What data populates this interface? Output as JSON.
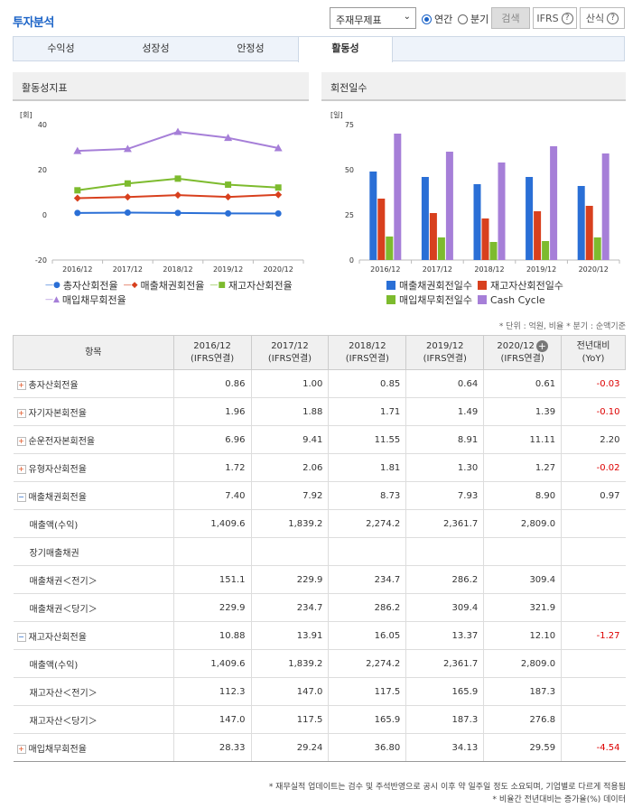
{
  "header": {
    "title": "투자분석",
    "select_value": "주재무제표",
    "radio_annual": "연간",
    "radio_quarter": "분기",
    "search_label": "검색",
    "ifrs_label": "IFRS",
    "calc_label": "산식"
  },
  "tabs": [
    {
      "label": "수익성"
    },
    {
      "label": "성장성"
    },
    {
      "label": "안정성"
    },
    {
      "label": "활동성"
    }
  ],
  "left_panel": {
    "title": "활동성지표"
  },
  "right_panel": {
    "title": "회전일수"
  },
  "chart_data": [
    {
      "type": "line",
      "unit_label": "[회]",
      "categories": [
        "2016/12",
        "2017/12",
        "2018/12",
        "2019/12",
        "2020/12"
      ],
      "ylim": [
        -20,
        40
      ],
      "yticks": [
        "40",
        "20",
        "0",
        "-20"
      ],
      "series": [
        {
          "name": "총자산회전율",
          "values": [
            0.86,
            1.0,
            0.85,
            0.64,
            0.61
          ],
          "color": "#2a6fd6",
          "marker": "circle"
        },
        {
          "name": "매출채권회전율",
          "values": [
            7.4,
            7.92,
            8.73,
            7.93,
            8.9
          ],
          "color": "#d8401e",
          "marker": "diamond"
        },
        {
          "name": "재고자산회전율",
          "values": [
            10.88,
            13.91,
            16.05,
            13.37,
            12.1
          ],
          "color": "#7dbb2e",
          "marker": "square"
        },
        {
          "name": "매입채무회전율",
          "values": [
            28.33,
            29.24,
            36.8,
            34.13,
            29.59
          ],
          "color": "#a67fd8",
          "marker": "triangle"
        }
      ]
    },
    {
      "type": "bar",
      "unit_label": "[일]",
      "categories": [
        "2016/12",
        "2017/12",
        "2018/12",
        "2019/12",
        "2020/12"
      ],
      "ylim": [
        0,
        75
      ],
      "yticks": [
        "75",
        "50",
        "25",
        "0"
      ],
      "series": [
        {
          "name": "매출채권회전일수",
          "values": [
            49,
            46,
            42,
            46,
            41
          ],
          "color": "#2a6fd6"
        },
        {
          "name": "재고자산회전일수",
          "values": [
            34,
            26,
            23,
            27,
            30
          ],
          "color": "#d8401e"
        },
        {
          "name": "매입채무회전일수",
          "values": [
            13,
            12.5,
            10,
            10.5,
            12.5
          ],
          "color": "#7dbb2e"
        },
        {
          "name": "Cash Cycle",
          "values": [
            70,
            60,
            54,
            63,
            59
          ],
          "color": "#a67fd8"
        }
      ]
    }
  ],
  "unit_note": "* 단위 : 억원, 비율   * 분기 : 순액기준",
  "table": {
    "headers": [
      {
        "l1": "항목",
        "l2": ""
      },
      {
        "l1": "2016/12",
        "l2": "(IFRS연결)"
      },
      {
        "l1": "2017/12",
        "l2": "(IFRS연결)"
      },
      {
        "l1": "2018/12",
        "l2": "(IFRS연결)"
      },
      {
        "l1": "2019/12",
        "l2": "(IFRS연결)"
      },
      {
        "l1": "2020/12",
        "l2": "(IFRS연결)"
      },
      {
        "l1": "전년대비",
        "l2": "(YoY)"
      }
    ],
    "rows": [
      {
        "label": "총자산회전율",
        "toggle": "plus",
        "vals": [
          "0.86",
          "1.00",
          "0.85",
          "0.64",
          "0.61"
        ],
        "yoy": "-0.03",
        "neg": true
      },
      {
        "label": "자기자본회전율",
        "toggle": "plus",
        "vals": [
          "1.96",
          "1.88",
          "1.71",
          "1.49",
          "1.39"
        ],
        "yoy": "-0.10",
        "neg": true
      },
      {
        "label": "순운전자본회전율",
        "toggle": "plus",
        "vals": [
          "6.96",
          "9.41",
          "11.55",
          "8.91",
          "11.11"
        ],
        "yoy": "2.20",
        "neg": false
      },
      {
        "label": "유형자산회전율",
        "toggle": "plus",
        "vals": [
          "1.72",
          "2.06",
          "1.81",
          "1.30",
          "1.27"
        ],
        "yoy": "-0.02",
        "neg": true
      },
      {
        "label": "매출채권회전율",
        "toggle": "minus",
        "vals": [
          "7.40",
          "7.92",
          "8.73",
          "7.93",
          "8.90"
        ],
        "yoy": "0.97",
        "neg": false
      },
      {
        "label": "매출액(수익)",
        "toggle": "",
        "vals": [
          "1,409.6",
          "1,839.2",
          "2,274.2",
          "2,361.7",
          "2,809.0"
        ],
        "yoy": "",
        "neg": false
      },
      {
        "label": "장기매출채권",
        "toggle": "",
        "vals": [
          "",
          "",
          "",
          "",
          ""
        ],
        "yoy": "",
        "neg": false
      },
      {
        "label": "매출채권＜전기＞",
        "toggle": "",
        "vals": [
          "151.1",
          "229.9",
          "234.7",
          "286.2",
          "309.4"
        ],
        "yoy": "",
        "neg": false
      },
      {
        "label": "매출채권＜당기＞",
        "toggle": "",
        "vals": [
          "229.9",
          "234.7",
          "286.2",
          "309.4",
          "321.9"
        ],
        "yoy": "",
        "neg": false
      },
      {
        "label": "재고자산회전율",
        "toggle": "minus",
        "vals": [
          "10.88",
          "13.91",
          "16.05",
          "13.37",
          "12.10"
        ],
        "yoy": "-1.27",
        "neg": true
      },
      {
        "label": "매출액(수익)",
        "toggle": "",
        "vals": [
          "1,409.6",
          "1,839.2",
          "2,274.2",
          "2,361.7",
          "2,809.0"
        ],
        "yoy": "",
        "neg": false
      },
      {
        "label": "재고자산＜전기＞",
        "toggle": "",
        "vals": [
          "112.3",
          "147.0",
          "117.5",
          "165.9",
          "187.3"
        ],
        "yoy": "",
        "neg": false
      },
      {
        "label": "재고자산＜당기＞",
        "toggle": "",
        "vals": [
          "147.0",
          "117.5",
          "165.9",
          "187.3",
          "276.8"
        ],
        "yoy": "",
        "neg": false
      },
      {
        "label": "매입채무회전율",
        "toggle": "plus",
        "vals": [
          "28.33",
          "29.24",
          "36.80",
          "34.13",
          "29.59"
        ],
        "yoy": "-4.54",
        "neg": true
      }
    ]
  },
  "footnotes": [
    "* 재무실적 업데이트는 검수 및 주석반영으로 공시 이후 약 일주일 정도 소요되며, 기업별로 다르게 적용됨",
    "* 비율간 전년대비는 증가율(%) 데이터"
  ]
}
